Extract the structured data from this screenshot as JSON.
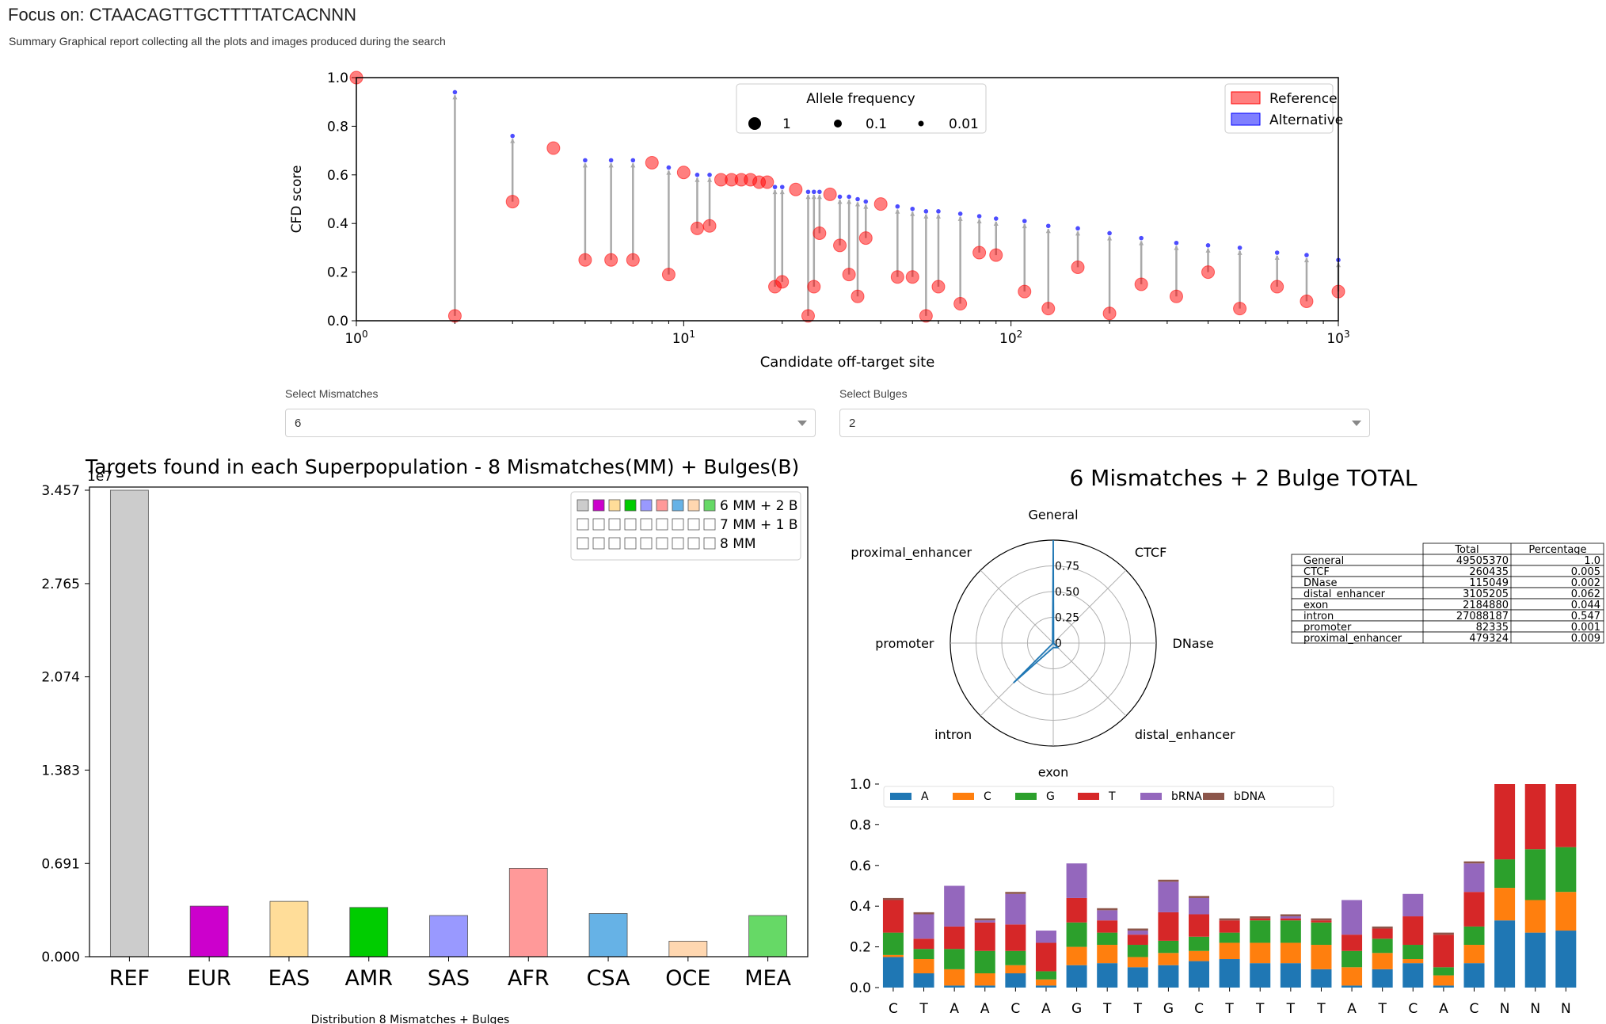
{
  "header": {
    "title": "Focus on: CTAACAGTTGCTTTTATCACNNN",
    "subtitle": "Summary Graphical report collecting all the plots and images produced during the search"
  },
  "selectors": {
    "mismatches_label": "Select Mismatches",
    "mismatches_value": "6",
    "bulges_label": "Select Bulges",
    "bulges_value": "2"
  },
  "colors": {
    "reference": "#ff0000",
    "alternative": "#0000ff",
    "stem": "#a9a9a9",
    "A": "#1f77b4",
    "C": "#ff7f0e",
    "G": "#2ca02c",
    "T": "#d62728",
    "bRNA": "#9467bd",
    "bDNA": "#8c564b"
  },
  "chart_data": [
    {
      "type": "scatter",
      "id": "cfd_plot",
      "xlabel": "Candidate off-target site",
      "ylabel": "CFD score",
      "xscale": "log",
      "xlim": [
        1,
        1000
      ],
      "ylim": [
        0.0,
        1.0
      ],
      "x_ticks": [
        "10^0",
        "10^1",
        "10^2",
        "10^3"
      ],
      "y_ticks": [
        "0.0",
        "0.2",
        "0.4",
        "0.6",
        "0.8",
        "1.0"
      ],
      "legend_allele": {
        "title": "Allele frequency",
        "entries": [
          "1",
          "0.1",
          "0.01"
        ],
        "placement": "top-center"
      },
      "legend_type": {
        "entries": [
          "Reference",
          "Alternative"
        ],
        "placement": "top-right"
      },
      "points": [
        {
          "x": 1,
          "ref": 1.0,
          "alt": null
        },
        {
          "x": 2,
          "ref": 0.02,
          "alt": 0.94
        },
        {
          "x": 3,
          "ref": 0.49,
          "alt": 0.76
        },
        {
          "x": 4,
          "ref": 0.71,
          "alt": null
        },
        {
          "x": 5,
          "ref": 0.25,
          "alt": 0.66
        },
        {
          "x": 6,
          "ref": 0.25,
          "alt": 0.66
        },
        {
          "x": 7,
          "ref": 0.25,
          "alt": 0.66
        },
        {
          "x": 8,
          "ref": 0.65,
          "alt": null
        },
        {
          "x": 9,
          "ref": 0.19,
          "alt": 0.63
        },
        {
          "x": 10,
          "ref": 0.61,
          "alt": null
        },
        {
          "x": 11,
          "ref": 0.38,
          "alt": 0.6
        },
        {
          "x": 12,
          "ref": 0.39,
          "alt": 0.6
        },
        {
          "x": 13,
          "ref": 0.58,
          "alt": null
        },
        {
          "x": 14,
          "ref": 0.58,
          "alt": null
        },
        {
          "x": 15,
          "ref": 0.58,
          "alt": null
        },
        {
          "x": 16,
          "ref": 0.58,
          "alt": null
        },
        {
          "x": 17,
          "ref": 0.57,
          "alt": null
        },
        {
          "x": 18,
          "ref": 0.57,
          "alt": null
        },
        {
          "x": 19,
          "ref": 0.14,
          "alt": 0.55
        },
        {
          "x": 20,
          "ref": 0.16,
          "alt": 0.55
        },
        {
          "x": 22,
          "ref": 0.54,
          "alt": null
        },
        {
          "x": 24,
          "ref": 0.02,
          "alt": 0.53
        },
        {
          "x": 25,
          "ref": 0.14,
          "alt": 0.53
        },
        {
          "x": 26,
          "ref": 0.36,
          "alt": 0.53
        },
        {
          "x": 28,
          "ref": 0.52,
          "alt": null
        },
        {
          "x": 30,
          "ref": 0.31,
          "alt": 0.51
        },
        {
          "x": 32,
          "ref": 0.19,
          "alt": 0.51
        },
        {
          "x": 34,
          "ref": 0.1,
          "alt": 0.5
        },
        {
          "x": 36,
          "ref": 0.34,
          "alt": 0.49
        },
        {
          "x": 40,
          "ref": 0.48,
          "alt": null
        },
        {
          "x": 45,
          "ref": 0.18,
          "alt": 0.47
        },
        {
          "x": 50,
          "ref": 0.18,
          "alt": 0.46
        },
        {
          "x": 55,
          "ref": 0.02,
          "alt": 0.45
        },
        {
          "x": 60,
          "ref": 0.14,
          "alt": 0.45
        },
        {
          "x": 70,
          "ref": 0.07,
          "alt": 0.44
        },
        {
          "x": 80,
          "ref": 0.28,
          "alt": 0.43
        },
        {
          "x": 90,
          "ref": 0.27,
          "alt": 0.42
        },
        {
          "x": 110,
          "ref": 0.12,
          "alt": 0.41
        },
        {
          "x": 130,
          "ref": 0.05,
          "alt": 0.39
        },
        {
          "x": 160,
          "ref": 0.22,
          "alt": 0.38
        },
        {
          "x": 200,
          "ref": 0.03,
          "alt": 0.36
        },
        {
          "x": 250,
          "ref": 0.15,
          "alt": 0.34
        },
        {
          "x": 320,
          "ref": 0.1,
          "alt": 0.32
        },
        {
          "x": 400,
          "ref": 0.2,
          "alt": 0.31
        },
        {
          "x": 500,
          "ref": 0.05,
          "alt": 0.3
        },
        {
          "x": 650,
          "ref": 0.14,
          "alt": 0.28
        },
        {
          "x": 800,
          "ref": 0.08,
          "alt": 0.27
        },
        {
          "x": 1000,
          "ref": 0.12,
          "alt": 0.25
        }
      ]
    },
    {
      "type": "bar",
      "id": "superpop_bars",
      "title": "Targets found in each Superpopulation - 8 Mismatches(MM) + Bulges(B)",
      "xlabel": "Distribution 8 Mismatches + Bulges",
      "offset_label": "1e7",
      "y_ticks": [
        "0.000",
        "0.691",
        "1.383",
        "2.074",
        "2.765",
        "3.457"
      ],
      "ylim": [
        0,
        3.457
      ],
      "categories": [
        "REF",
        "EUR",
        "EAS",
        "AMR",
        "SAS",
        "AFR",
        "CSA",
        "OCE",
        "MEA"
      ],
      "values": [
        3.457,
        0.375,
        0.41,
        0.365,
        0.305,
        0.655,
        0.32,
        0.115,
        0.305
      ],
      "bar_colors": [
        "#cccccc",
        "#cc00cc",
        "#ffdd99",
        "#00cc00",
        "#9999ff",
        "#ff9999",
        "#66b2e6",
        "#ffd7b0",
        "#66d966"
      ],
      "legend": {
        "entries": [
          "6 MM + 2 B",
          "7 MM + 1 B",
          "8 MM"
        ],
        "placement": "top-right"
      }
    },
    {
      "type": "radar",
      "id": "annotation_radar",
      "title": "6 Mismatches + 2 Bulge TOTAL",
      "axes": [
        "General",
        "CTCF",
        "DNase",
        "distal_enhancer",
        "exon",
        "intron",
        "promoter",
        "proximal_enhancer"
      ],
      "values": [
        1.0,
        0.005,
        0.002,
        0.062,
        0.044,
        0.547,
        0.001,
        0.009
      ],
      "r_ticks": [
        "0",
        "0.25",
        "0.50",
        "0.75"
      ]
    },
    {
      "type": "table",
      "id": "annotation_table",
      "columns": [
        "",
        "Total",
        "Percentage"
      ],
      "rows": [
        [
          "General",
          "49505370",
          "1.0"
        ],
        [
          "CTCF",
          "260435",
          "0.005"
        ],
        [
          "DNase",
          "115049",
          "0.002"
        ],
        [
          "distal_enhancer",
          "3105205",
          "0.062"
        ],
        [
          "exon",
          "2184880",
          "0.044"
        ],
        [
          "intron",
          "27088187",
          "0.547"
        ],
        [
          "promoter",
          "82335",
          "0.001"
        ],
        [
          "proximal_enhancer",
          "479324",
          "0.009"
        ]
      ]
    },
    {
      "type": "bar",
      "id": "position_stacked",
      "stacked": true,
      "categories": [
        "C",
        "T",
        "A",
        "A",
        "C",
        "A",
        "G",
        "T",
        "T",
        "G",
        "C",
        "T",
        "T",
        "T",
        "T",
        "A",
        "T",
        "C",
        "A",
        "C",
        "N",
        "N",
        "N"
      ],
      "y_ticks": [
        "0.0",
        "0.2",
        "0.4",
        "0.6",
        "0.8",
        "1.0"
      ],
      "ylim": [
        0,
        1.0
      ],
      "legend": {
        "entries": [
          "A",
          "C",
          "G",
          "T",
          "bRNA",
          "bDNA"
        ],
        "placement": "top"
      },
      "series": [
        {
          "name": "A",
          "values": [
            0.15,
            0.07,
            0.01,
            0.01,
            0.07,
            0.01,
            0.11,
            0.12,
            0.1,
            0.11,
            0.13,
            0.14,
            0.12,
            0.12,
            0.09,
            0.01,
            0.09,
            0.12,
            0.01,
            0.12,
            0.33,
            0.27,
            0.28
          ]
        },
        {
          "name": "C",
          "values": [
            0.01,
            0.07,
            0.08,
            0.06,
            0.04,
            0.03,
            0.09,
            0.09,
            0.05,
            0.06,
            0.05,
            0.08,
            0.1,
            0.1,
            0.12,
            0.09,
            0.08,
            0.02,
            0.05,
            0.09,
            0.16,
            0.16,
            0.19
          ]
        },
        {
          "name": "G",
          "values": [
            0.11,
            0.05,
            0.1,
            0.11,
            0.07,
            0.04,
            0.12,
            0.06,
            0.06,
            0.06,
            0.07,
            0.05,
            0.11,
            0.11,
            0.11,
            0.08,
            0.07,
            0.07,
            0.04,
            0.09,
            0.14,
            0.25,
            0.22
          ]
        },
        {
          "name": "T",
          "values": [
            0.16,
            0.05,
            0.11,
            0.14,
            0.13,
            0.14,
            0.12,
            0.06,
            0.05,
            0.14,
            0.11,
            0.06,
            0.01,
            0.01,
            0.01,
            0.08,
            0.05,
            0.14,
            0.16,
            0.17,
            0.37,
            0.32,
            0.31
          ]
        },
        {
          "name": "bRNA",
          "values": [
            0.0,
            0.12,
            0.2,
            0.01,
            0.15,
            0.06,
            0.17,
            0.05,
            0.02,
            0.15,
            0.08,
            0.0,
            0.0,
            0.01,
            0.0,
            0.17,
            0.0,
            0.11,
            0.0,
            0.14,
            0.0,
            0.0,
            0.0
          ]
        },
        {
          "name": "bDNA",
          "values": [
            0.01,
            0.01,
            0.0,
            0.01,
            0.01,
            0.0,
            0.0,
            0.01,
            0.01,
            0.01,
            0.01,
            0.01,
            0.01,
            0.01,
            0.01,
            0.0,
            0.01,
            0.0,
            0.01,
            0.01,
            0.0,
            0.0,
            0.0
          ]
        }
      ]
    }
  ]
}
